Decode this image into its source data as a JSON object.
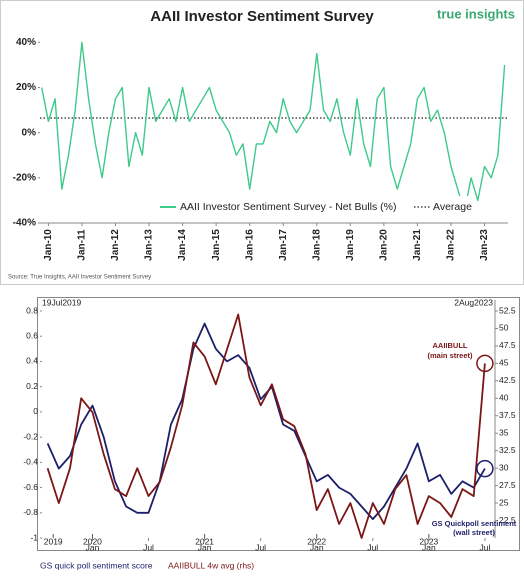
{
  "chart_data": [
    {
      "type": "line",
      "title": "AAII Investor Sentiment Survey",
      "logo": "true insights",
      "source": "Source: True Insights, AAII Investor Sentiment Survey",
      "x": [
        2009.8,
        2010.0,
        2010.2,
        2010.4,
        2010.6,
        2010.8,
        2011.0,
        2011.2,
        2011.4,
        2011.6,
        2011.8,
        2012.0,
        2012.2,
        2012.4,
        2012.6,
        2012.8,
        2013.0,
        2013.2,
        2013.4,
        2013.6,
        2013.8,
        2014.0,
        2014.2,
        2014.4,
        2014.6,
        2014.8,
        2015.0,
        2015.2,
        2015.4,
        2015.6,
        2015.8,
        2016.0,
        2016.2,
        2016.4,
        2016.6,
        2016.8,
        2017.0,
        2017.2,
        2017.4,
        2017.6,
        2017.8,
        2018.0,
        2018.2,
        2018.4,
        2018.6,
        2018.8,
        2019.0,
        2019.2,
        2019.4,
        2019.6,
        2019.8,
        2020.0,
        2020.2,
        2020.4,
        2020.6,
        2020.8,
        2021.0,
        2021.2,
        2021.4,
        2021.6,
        2021.8,
        2022.0,
        2022.2,
        2022.4,
        2022.6,
        2022.8,
        2023.0,
        2023.2,
        2023.4,
        2023.6
      ],
      "series": [
        {
          "name": "AAII Investor Sentiment Survey - Net Bulls (%)",
          "color": "#3fc98a",
          "values": [
            20,
            5,
            15,
            -25,
            -10,
            10,
            40,
            15,
            -5,
            -20,
            0,
            15,
            20,
            -15,
            0,
            -10,
            20,
            5,
            10,
            15,
            5,
            20,
            5,
            10,
            15,
            20,
            10,
            5,
            0,
            -10,
            -5,
            -25,
            -5,
            -5,
            5,
            0,
            15,
            5,
            0,
            5,
            10,
            35,
            10,
            5,
            15,
            0,
            -10,
            15,
            -5,
            -15,
            15,
            20,
            -15,
            -25,
            -15,
            -5,
            15,
            20,
            5,
            10,
            0,
            -15,
            -25,
            -35,
            -20,
            -30,
            -15,
            -20,
            -10,
            30
          ]
        }
      ],
      "reference_line": {
        "label": "Average",
        "value": 6.5
      },
      "xlim": [
        2009.75,
        2023.7
      ],
      "xticks": [
        {
          "value": 2010,
          "label": "Jan-10"
        },
        {
          "value": 2011,
          "label": "Jan-11"
        },
        {
          "value": 2012,
          "label": "Jan-12"
        },
        {
          "value": 2013,
          "label": "Jan-13"
        },
        {
          "value": 2014,
          "label": "Jan-14"
        },
        {
          "value": 2015,
          "label": "Jan-15"
        },
        {
          "value": 2016,
          "label": "Jan-16"
        },
        {
          "value": 2017,
          "label": "Jan-17"
        },
        {
          "value": 2018,
          "label": "Jan-18"
        },
        {
          "value": 2019,
          "label": "Jan-19"
        },
        {
          "value": 2020,
          "label": "Jan-20"
        },
        {
          "value": 2021,
          "label": "Jan-21"
        },
        {
          "value": 2022,
          "label": "Jan-22"
        },
        {
          "value": 2023,
          "label": "Jan-23"
        }
      ],
      "ylim": [
        -40,
        45
      ],
      "yticks": [
        {
          "value": 40,
          "label": "40%"
        },
        {
          "value": 20,
          "label": "20%"
        },
        {
          "value": 0,
          "label": "0%"
        },
        {
          "value": -20,
          "label": "-20%"
        },
        {
          "value": -40,
          "label": "-40%"
        }
      ]
    },
    {
      "type": "line",
      "start_label": "19Jul2019",
      "end_label": "2Aug2023",
      "x": [
        2019.6,
        2019.7,
        2019.8,
        2019.9,
        2020.0,
        2020.1,
        2020.2,
        2020.3,
        2020.4,
        2020.5,
        2020.6,
        2020.7,
        2020.8,
        2020.9,
        2021.0,
        2021.1,
        2021.2,
        2021.3,
        2021.4,
        2021.5,
        2021.6,
        2021.7,
        2021.8,
        2021.9,
        2022.0,
        2022.1,
        2022.2,
        2022.3,
        2022.4,
        2022.5,
        2022.6,
        2022.7,
        2022.8,
        2022.9,
        2023.0,
        2023.1,
        2023.2,
        2023.3,
        2023.4,
        2023.5
      ],
      "series": [
        {
          "name": "GS quick poll sentiment score",
          "color": "#1c1f6b",
          "values": [
            -0.25,
            -0.45,
            -0.35,
            -0.1,
            0.05,
            -0.2,
            -0.55,
            -0.75,
            -0.8,
            -0.8,
            -0.55,
            -0.1,
            0.1,
            0.5,
            0.7,
            0.5,
            0.4,
            0.45,
            0.35,
            0.1,
            0.2,
            -0.1,
            -0.15,
            -0.35,
            -0.55,
            -0.5,
            -0.6,
            -0.65,
            -0.75,
            -0.85,
            -0.75,
            -0.6,
            -0.45,
            -0.25,
            -0.55,
            -0.5,
            -0.65,
            -0.55,
            -0.6,
            -0.45
          ]
        },
        {
          "name": "AAIIBULL 4w avg (rhs)",
          "color": "#7a1616",
          "axis": "y2",
          "values": [
            30,
            25,
            30,
            40,
            38,
            32,
            27,
            26,
            30,
            26,
            28,
            33,
            39,
            48,
            46,
            42,
            47,
            52,
            43,
            39,
            42,
            37,
            36,
            32,
            24,
            27,
            22,
            25,
            20,
            25,
            22,
            27,
            29,
            22,
            26,
            25,
            23,
            27,
            26,
            45
          ]
        }
      ],
      "annotations": [
        [
          "AAIIBULL",
          "(main street)"
        ],
        [
          "GS Quickpoll sentiment",
          "(wall street)"
        ]
      ],
      "xlim": [
        2019.55,
        2023.59
      ],
      "xticks": [
        {
          "value": 2020.0,
          "label": "Jan"
        },
        {
          "value": 2020.5,
          "label": "Jul"
        },
        {
          "value": 2021.0,
          "label": "Jan"
        },
        {
          "value": 2021.5,
          "label": "Jul"
        },
        {
          "value": 2022.0,
          "label": "Jan"
        },
        {
          "value": 2022.5,
          "label": "Jul"
        },
        {
          "value": 2023.0,
          "label": "Jan"
        },
        {
          "value": 2023.5,
          "label": "Jul"
        }
      ],
      "year_ticks": [
        {
          "value": 2019.65,
          "label": "2019"
        },
        {
          "value": 2020.0,
          "label": "2020"
        },
        {
          "value": 2021.0,
          "label": "2021"
        },
        {
          "value": 2022.0,
          "label": "2022"
        },
        {
          "value": 2023.0,
          "label": "2023"
        }
      ],
      "ylim": [
        -1,
        0.8
      ],
      "yticks": [
        0.8,
        0.6,
        0.4,
        0.2,
        0,
        -0.2,
        -0.4,
        -0.6,
        -0.8,
        -1
      ],
      "y2lim": [
        20,
        52.5
      ],
      "y2ticks": [
        52.5,
        50,
        47.5,
        45,
        42.5,
        40,
        37.5,
        35,
        32.5,
        30,
        27.5,
        25,
        22.5
      ]
    }
  ]
}
